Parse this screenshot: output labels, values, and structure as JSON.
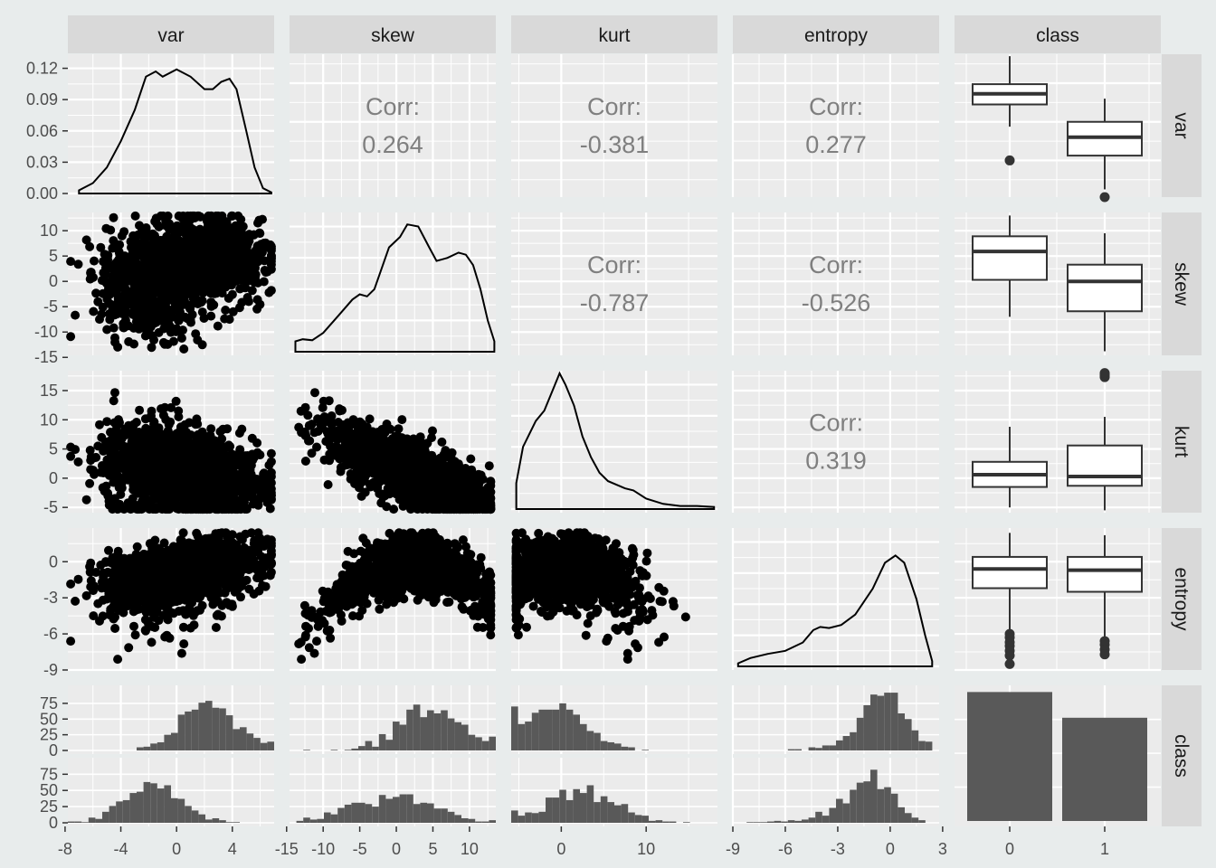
{
  "chart_data": {
    "type": "pairs",
    "variables": [
      "var",
      "skew",
      "kurt",
      "entropy",
      "class"
    ],
    "column_strips": [
      "var",
      "skew",
      "kurt",
      "entropy",
      "class"
    ],
    "row_strips": [
      "var",
      "skew",
      "kurt",
      "entropy",
      "class"
    ],
    "corr_label": "Corr:",
    "correlations": [
      {
        "row": "var",
        "col": "skew",
        "value": "0.264"
      },
      {
        "row": "var",
        "col": "kurt",
        "value": "-0.381"
      },
      {
        "row": "var",
        "col": "entropy",
        "value": "0.277"
      },
      {
        "row": "skew",
        "col": "kurt",
        "value": "-0.787"
      },
      {
        "row": "skew",
        "col": "entropy",
        "value": "-0.526"
      },
      {
        "row": "kurt",
        "col": "entropy",
        "value": "0.319"
      }
    ],
    "ranges": {
      "var": [
        -7.8,
        7.0
      ],
      "skew": [
        -14.6,
        13.6
      ],
      "kurt": [
        -5.9,
        18.4
      ],
      "entropy": [
        -9.0,
        2.8
      ]
    },
    "x_ticks": {
      "var": [
        "-8",
        "-4",
        "0",
        "4"
      ],
      "skew": [
        "-15",
        "-10",
        "-5",
        "0",
        "5",
        "10"
      ],
      "kurt": [
        "0",
        "10"
      ],
      "entropy": [
        "-9",
        "-6",
        "-3",
        "0",
        "3"
      ],
      "class": [
        "0",
        "1"
      ]
    },
    "y_ticks": {
      "var_density": [
        "0.12",
        "0.09",
        "0.06",
        "0.03",
        "0.00"
      ],
      "skew": [
        "10",
        "5",
        "0",
        "-5",
        "-10",
        "-15"
      ],
      "kurt": [
        "15",
        "10",
        "5",
        "0",
        "-5"
      ],
      "entropy": [
        "0",
        "-3",
        "-6",
        "-9"
      ],
      "class_count": [
        "75",
        "50",
        "25",
        "0"
      ]
    },
    "density_ylim": [
      0,
      0.13
    ],
    "densities": {
      "var": [
        [
          -7.0,
          0.003
        ],
        [
          -6.0,
          0.01
        ],
        [
          -5.0,
          0.025
        ],
        [
          -4.0,
          0.05
        ],
        [
          -3.0,
          0.08
        ],
        [
          -2.2,
          0.112
        ],
        [
          -1.5,
          0.117
        ],
        [
          -1.0,
          0.112
        ],
        [
          0.0,
          0.119
        ],
        [
          1.0,
          0.112
        ],
        [
          2.0,
          0.1
        ],
        [
          2.6,
          0.1
        ],
        [
          3.2,
          0.107
        ],
        [
          3.8,
          0.11
        ],
        [
          4.3,
          0.1
        ],
        [
          5.0,
          0.06
        ],
        [
          5.6,
          0.025
        ],
        [
          6.2,
          0.005
        ],
        [
          6.8,
          0.001
        ]
      ],
      "skew": [
        [
          -13.8,
          0.01
        ],
        [
          -12.8,
          0.012
        ],
        [
          -11.5,
          0.011
        ],
        [
          -10.0,
          0.018
        ],
        [
          -8.0,
          0.034
        ],
        [
          -6.0,
          0.05
        ],
        [
          -5.0,
          0.055
        ],
        [
          -4.0,
          0.053
        ],
        [
          -3.0,
          0.06
        ],
        [
          -2.0,
          0.08
        ],
        [
          -1.0,
          0.1
        ],
        [
          0.5,
          0.11
        ],
        [
          1.5,
          0.122
        ],
        [
          3.0,
          0.12
        ],
        [
          4.5,
          0.1
        ],
        [
          5.5,
          0.087
        ],
        [
          7.0,
          0.09
        ],
        [
          8.5,
          0.095
        ],
        [
          9.5,
          0.093
        ],
        [
          10.5,
          0.083
        ],
        [
          11.5,
          0.06
        ],
        [
          12.5,
          0.03
        ],
        [
          13.4,
          0.01
        ]
      ],
      "kurt": [
        [
          -5.3,
          0.025
        ],
        [
          -4.5,
          0.06
        ],
        [
          -3.0,
          0.085
        ],
        [
          -2.0,
          0.095
        ],
        [
          -1.0,
          0.115
        ],
        [
          -0.2,
          0.131
        ],
        [
          0.5,
          0.12
        ],
        [
          1.5,
          0.1
        ],
        [
          2.5,
          0.07
        ],
        [
          3.5,
          0.05
        ],
        [
          4.5,
          0.035
        ],
        [
          5.5,
          0.027
        ],
        [
          7.5,
          0.02
        ],
        [
          8.5,
          0.018
        ],
        [
          10.0,
          0.01
        ],
        [
          12.0,
          0.005
        ],
        [
          14.0,
          0.003
        ],
        [
          16.0,
          0.003
        ],
        [
          18.0,
          0.002
        ]
      ],
      "entropy": [
        [
          -8.7,
          0.003
        ],
        [
          -8.0,
          0.008
        ],
        [
          -7.0,
          0.012
        ],
        [
          -6.0,
          0.015
        ],
        [
          -5.0,
          0.023
        ],
        [
          -4.4,
          0.035
        ],
        [
          -4.0,
          0.038
        ],
        [
          -3.5,
          0.037
        ],
        [
          -2.8,
          0.04
        ],
        [
          -2.0,
          0.05
        ],
        [
          -1.0,
          0.075
        ],
        [
          -0.3,
          0.1
        ],
        [
          0.3,
          0.107
        ],
        [
          0.8,
          0.1
        ],
        [
          1.5,
          0.065
        ],
        [
          2.0,
          0.03
        ],
        [
          2.4,
          0.005
        ]
      ]
    },
    "scatter_seed_note": "",
    "boxplots": {
      "var": [
        {
          "class": "0",
          "min": -0.5,
          "q1": 1.8,
          "median": 2.9,
          "q3": 3.9,
          "max": 6.8,
          "outliers": [
            -4.0
          ]
        },
        {
          "class": "1",
          "min": -7.0,
          "q1": -3.5,
          "median": -1.6,
          "q3": 0.0,
          "max": 2.4,
          "outliers": [
            -7.8
          ]
        }
      ],
      "skew": [
        {
          "class": "0",
          "min": -7.0,
          "q1": 0.3,
          "median": 5.9,
          "q3": 8.9,
          "max": 13.0,
          "outliers": []
        },
        {
          "class": "1",
          "min": -13.8,
          "q1": -5.9,
          "median": 0.0,
          "q3": 3.3,
          "max": 9.5,
          "outliers": []
        }
      ],
      "kurt": [
        {
          "class": "0",
          "min": -5.0,
          "q1": -1.5,
          "median": 0.6,
          "q3": 2.8,
          "max": 8.8,
          "outliers": []
        },
        {
          "class": "1",
          "min": -5.5,
          "q1": -1.3,
          "median": 0.3,
          "q3": 5.6,
          "max": 10.5,
          "outliers": [
            17.3,
            17.5,
            17.8,
            18.0
          ]
        }
      ],
      "entropy": [
        {
          "class": "0",
          "min": -5.7,
          "q1": -2.2,
          "median": -0.6,
          "q3": 0.4,
          "max": 2.4,
          "outliers": [
            -6.0,
            -6.3,
            -6.7,
            -7.0,
            -7.4,
            -7.8,
            -8.5
          ]
        },
        {
          "class": "1",
          "min": -6.4,
          "q1": -2.5,
          "median": -0.7,
          "q3": 0.4,
          "max": 2.2,
          "outliers": [
            -6.6,
            -6.9,
            -7.3,
            -7.7
          ]
        }
      ]
    },
    "class_counts": {
      "0": 762,
      "1": 610
    },
    "hist_ylim": [
      0,
      95
    ]
  }
}
